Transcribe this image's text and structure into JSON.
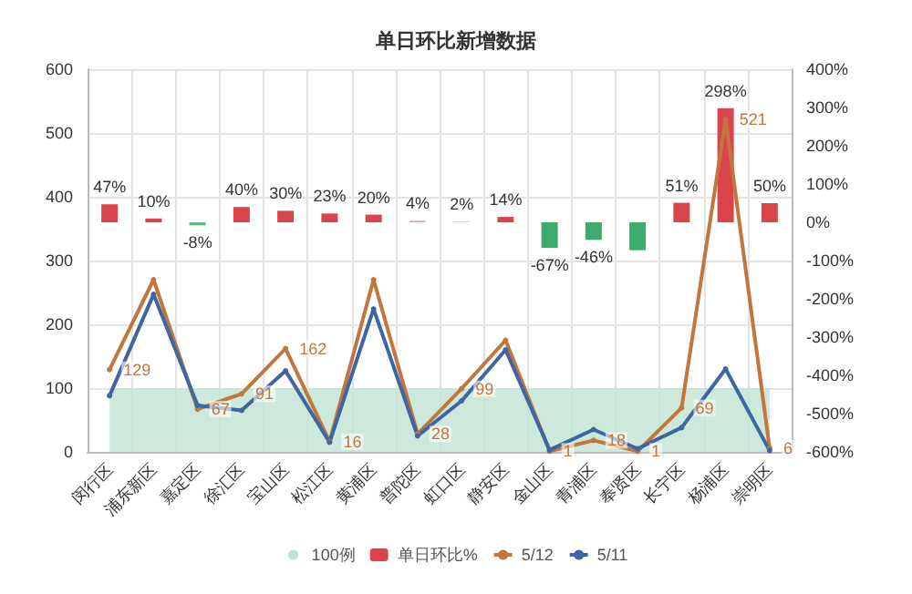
{
  "chart_data": {
    "type": "bar",
    "title": "单日环比新增数据",
    "categories": [
      "闵行区",
      "浦东新区",
      "嘉定区",
      "徐汇区",
      "宝山区",
      "松江区",
      "黄浦区",
      "普陀区",
      "虹口区",
      "静安区",
      "金山区",
      "青浦区",
      "奉贤区",
      "长宁区",
      "杨浦区",
      "崇明区"
    ],
    "series": [
      {
        "name": "100例",
        "type": "area",
        "marker": "none",
        "color": "#bfe3d3",
        "values": [
          100,
          100,
          100,
          100,
          100,
          100,
          100,
          100,
          100,
          100,
          100,
          100,
          100,
          100,
          100,
          100
        ]
      },
      {
        "name": "单日环比%",
        "axis": "y2",
        "color": "#d9454a",
        "colors": [
          "#d9454a",
          "#d9454a",
          "#5fb88a",
          "#d9454a",
          "#d9454a",
          "#d9454a",
          "#d9454a",
          "#e8a0a3",
          "#e0c8c8",
          "#d9454a",
          "#3daa6e",
          "#3daa6e",
          "#3daa6e",
          "#d9454a",
          "#d9454a",
          "#d9454a"
        ],
        "values": [
          47,
          10,
          -8,
          40,
          30,
          23,
          20,
          4,
          2,
          14,
          -67,
          -46,
          -73,
          51,
          298,
          50
        ],
        "value_labels": [
          "47%",
          "10%",
          "-8%",
          "40%",
          "30%",
          "23%",
          "20%",
          "4%",
          "2%",
          "14%",
          "-67%",
          "-46%",
          null,
          "51%",
          "298%",
          "50%"
        ]
      },
      {
        "name": "5/12",
        "type": "line",
        "color": "#c0763c",
        "values": [
          129,
          270,
          67,
          91,
          162,
          16,
          270,
          28,
          99,
          175,
          1,
          18,
          1,
          69,
          521,
          6
        ],
        "value_labels": [
          "129",
          null,
          "67",
          "91",
          "162",
          "16",
          null,
          "28",
          "99",
          null,
          "1",
          "18",
          "1",
          "69",
          "521",
          "6"
        ]
      },
      {
        "name": "5/11",
        "type": "line",
        "color": "#3f66a0",
        "values": [
          88,
          247,
          73,
          65,
          127,
          15,
          224,
          25,
          80,
          160,
          3,
          35,
          5,
          38,
          130,
          2
        ]
      }
    ],
    "ylim": [
      0,
      600
    ],
    "yticks": [
      0,
      100,
      200,
      300,
      400,
      500,
      600
    ],
    "y2lim": [
      -600,
      400
    ],
    "y2ticks": [
      {
        "value": -600,
        "label": "-600%"
      },
      {
        "value": -500,
        "label": "-500%"
      },
      {
        "value": -400,
        "label": "-400%"
      },
      {
        "value": -300,
        "label": "-300%"
      },
      {
        "value": -200,
        "label": "-200%"
      },
      {
        "value": -100,
        "label": "-100%"
      },
      {
        "value": 0,
        "label": "0%"
      },
      {
        "value": 100,
        "label": "100%"
      },
      {
        "value": 200,
        "label": "200%"
      },
      {
        "value": 300,
        "label": "300%"
      },
      {
        "value": 400,
        "label": "400%"
      }
    ],
    "grid": true,
    "legend": "bottom",
    "marker": "circle"
  }
}
